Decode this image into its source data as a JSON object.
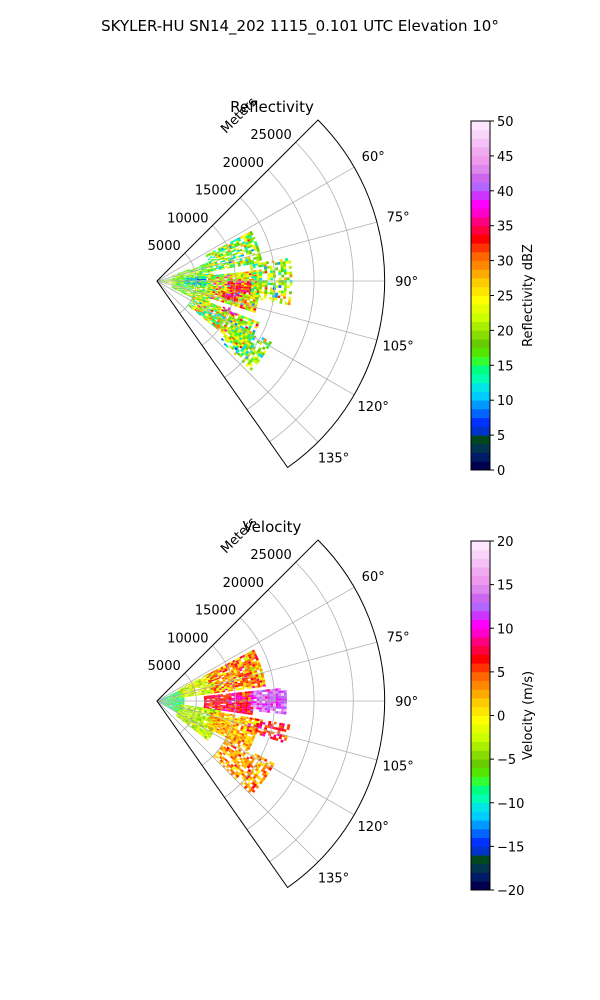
{
  "figure": {
    "suptitle": "SKYLER-HU  SN14_202  1115_0.101 UTC Elevation 10°"
  },
  "chart_data": [
    {
      "type": "heatmap",
      "title": "Reflectivity",
      "radial_label": "Meters",
      "radial_ticks": [
        5000,
        10000,
        15000,
        20000,
        25000
      ],
      "radial_tick_labels": [
        "5000",
        "10000",
        "15000",
        "20000",
        "25000"
      ],
      "rlim": [
        0,
        29000
      ],
      "angle_ticks": [
        60,
        75,
        90,
        105,
        120,
        135
      ],
      "angle_tick_labels": [
        "60°",
        "75°",
        "90°",
        "105°",
        "120°",
        "135°"
      ],
      "sector_degrees": [
        45,
        145
      ],
      "grid": true,
      "colorbar": {
        "label": "Reflectivity dBZ",
        "range": [
          0,
          50
        ],
        "ticks": [
          0,
          5,
          10,
          15,
          20,
          25,
          30,
          35,
          40,
          45,
          50
        ],
        "tick_labels": [
          "0",
          "5",
          "10",
          "15",
          "20",
          "25",
          "30",
          "35",
          "40",
          "45",
          "50"
        ],
        "colors": [
          "#00004d",
          "#001a66",
          "#00334d",
          "#00471f",
          "#0033cc",
          "#0033ff",
          "#0066ff",
          "#0099ff",
          "#00ccff",
          "#00e5e5",
          "#00ffb3",
          "#00ff80",
          "#33ff33",
          "#55e600",
          "#66cc00",
          "#88dd00",
          "#aaee00",
          "#ccff00",
          "#e5ff00",
          "#ffff00",
          "#ffe600",
          "#ffcc00",
          "#ffaa00",
          "#ff8800",
          "#ff6600",
          "#ff3300",
          "#ff0000",
          "#ff0040",
          "#ff0080",
          "#ff00cc",
          "#ff00ff",
          "#cc33ff",
          "#b366ff",
          "#cc66ee",
          "#dd88ee",
          "#ee99ee",
          "#f0aaf0",
          "#f5c0f5",
          "#fad5fa",
          "#ffe6ff"
        ]
      },
      "clusters": [
        {
          "range": [
            0,
            3200
          ],
          "azimuth": [
            80,
            100
          ],
          "value": 20,
          "spread": 4,
          "density": 0.7
        },
        {
          "range": [
            2000,
            7000
          ],
          "azimuth": [
            70,
            115
          ],
          "value": 19,
          "spread": 4,
          "density": 0.85
        },
        {
          "range": [
            3500,
            6000
          ],
          "azimuth": [
            84,
            95
          ],
          "value": 11,
          "spread": 3,
          "density": 0.9
        },
        {
          "range": [
            7000,
            13500
          ],
          "azimuth": [
            62,
            80
          ],
          "value": 19,
          "spread": 5,
          "density": 0.75
        },
        {
          "range": [
            6500,
            13000
          ],
          "azimuth": [
            84,
            108
          ],
          "value": 24,
          "spread": 6,
          "density": 0.9
        },
        {
          "range": [
            9000,
            12000
          ],
          "azimuth": [
            90,
            98
          ],
          "value": 33,
          "spread": 3,
          "density": 0.9
        },
        {
          "range": [
            8500,
            10500
          ],
          "azimuth": [
            99,
            104
          ],
          "value": 34,
          "spread": 3,
          "density": 0.8
        },
        {
          "range": [
            12000,
            17000
          ],
          "azimuth": [
            80,
            100
          ],
          "value": 20,
          "spread": 5,
          "density": 0.6
        },
        {
          "range": [
            5000,
            14000
          ],
          "azimuth": [
            112,
            128
          ],
          "value": 22,
          "spread": 6,
          "density": 0.85
        },
        {
          "range": [
            11000,
            16500
          ],
          "azimuth": [
            118,
            133
          ],
          "value": 18,
          "spread": 5,
          "density": 0.6
        },
        {
          "range": [
            9000,
            11000
          ],
          "azimuth": [
            110,
            114
          ],
          "value": 36,
          "spread": 2,
          "density": 0.3
        }
      ]
    },
    {
      "type": "heatmap",
      "title": "Velocity",
      "radial_label": "Meters",
      "radial_ticks": [
        5000,
        10000,
        15000,
        20000,
        25000
      ],
      "radial_tick_labels": [
        "5000",
        "10000",
        "15000",
        "20000",
        "25000"
      ],
      "rlim": [
        0,
        29000
      ],
      "angle_ticks": [
        60,
        75,
        90,
        105,
        120,
        135
      ],
      "angle_tick_labels": [
        "60°",
        "75°",
        "90°",
        "105°",
        "120°",
        "135°"
      ],
      "sector_degrees": [
        45,
        145
      ],
      "grid": true,
      "colorbar": {
        "label": "Velocity (m/s)",
        "range": [
          -20,
          20
        ],
        "ticks": [
          -20,
          -15,
          -10,
          -5,
          0,
          5,
          10,
          15,
          20
        ],
        "tick_labels": [
          "−20",
          "−15",
          "−10",
          "−5",
          "0",
          "5",
          "10",
          "15",
          "20"
        ],
        "colors": [
          "#00004d",
          "#001a66",
          "#00334d",
          "#00471f",
          "#0033cc",
          "#0033ff",
          "#0066ff",
          "#0099ff",
          "#00ccff",
          "#00e5e5",
          "#00ffb3",
          "#00ff80",
          "#33ff33",
          "#55e600",
          "#66cc00",
          "#88dd00",
          "#aaee00",
          "#ccff00",
          "#e5ff00",
          "#ffff00",
          "#ffe600",
          "#ffcc00",
          "#ffaa00",
          "#ff8800",
          "#ff6600",
          "#ff3300",
          "#ff0000",
          "#ff0040",
          "#ff0080",
          "#ff00cc",
          "#ff00ff",
          "#cc33ff",
          "#b366ff",
          "#cc66ee",
          "#dd88ee",
          "#ee99ee",
          "#f0aaf0",
          "#f5c0f5",
          "#fad5fa",
          "#ffe6ff"
        ]
      },
      "clusters": [
        {
          "range": [
            0,
            3500
          ],
          "azimuth": [
            65,
            118
          ],
          "value": -8,
          "spread": 2,
          "density": 0.95
        },
        {
          "range": [
            3000,
            8000
          ],
          "azimuth": [
            62,
            82
          ],
          "value": -2,
          "spread": 2,
          "density": 0.9
        },
        {
          "range": [
            3000,
            8000
          ],
          "azimuth": [
            98,
            128
          ],
          "value": -3,
          "spread": 2,
          "density": 0.9
        },
        {
          "range": [
            7000,
            14000
          ],
          "azimuth": [
            62,
            82
          ],
          "value": 3,
          "spread": 3,
          "density": 0.9
        },
        {
          "range": [
            6000,
            12000
          ],
          "azimuth": [
            84,
            98
          ],
          "value": 7,
          "spread": 2,
          "density": 0.95
        },
        {
          "range": [
            12000,
            16500
          ],
          "azimuth": [
            84,
            96
          ],
          "value": 13,
          "spread": 2,
          "density": 0.85
        },
        {
          "range": [
            7000,
            13000
          ],
          "azimuth": [
            100,
            118
          ],
          "value": 2,
          "spread": 2,
          "density": 0.9
        },
        {
          "range": [
            12000,
            17000
          ],
          "azimuth": [
            100,
            108
          ],
          "value": 6,
          "spread": 2,
          "density": 0.6
        },
        {
          "range": [
            10000,
            17000
          ],
          "azimuth": [
            118,
            134
          ],
          "value": 3,
          "spread": 2,
          "density": 0.7
        }
      ]
    }
  ]
}
